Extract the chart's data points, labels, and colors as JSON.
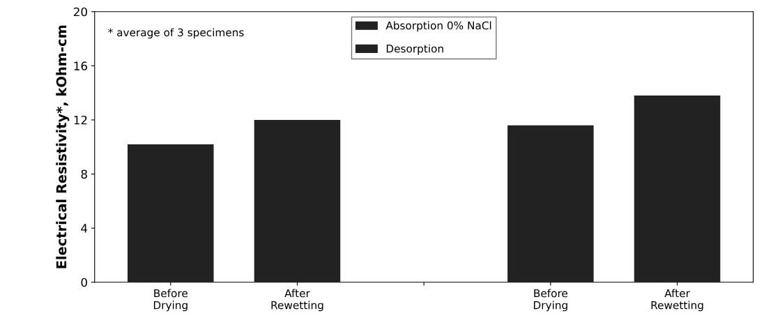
{
  "chart_data": {
    "type": "bar",
    "ylabel": "Electrical Resistivity*, kOhm-cm",
    "categories": [
      "Before\nDrying",
      "After\nRewetting",
      null,
      "Before\nDrying",
      "After\nRewetting"
    ],
    "series": [
      {
        "name": "Absorption 0% NaCl",
        "color": "#222222",
        "values": [
          10.2,
          12.0,
          null,
          null,
          null
        ]
      },
      {
        "name": "Desorption",
        "color": "#222222",
        "values": [
          null,
          null,
          null,
          11.6,
          13.8
        ]
      }
    ],
    "ylim": [
      0,
      20
    ],
    "yticks": [
      0,
      4,
      8,
      12,
      16,
      20
    ],
    "grid": false,
    "legend": "top",
    "annotations": [
      "* average of 3 specimens"
    ]
  }
}
